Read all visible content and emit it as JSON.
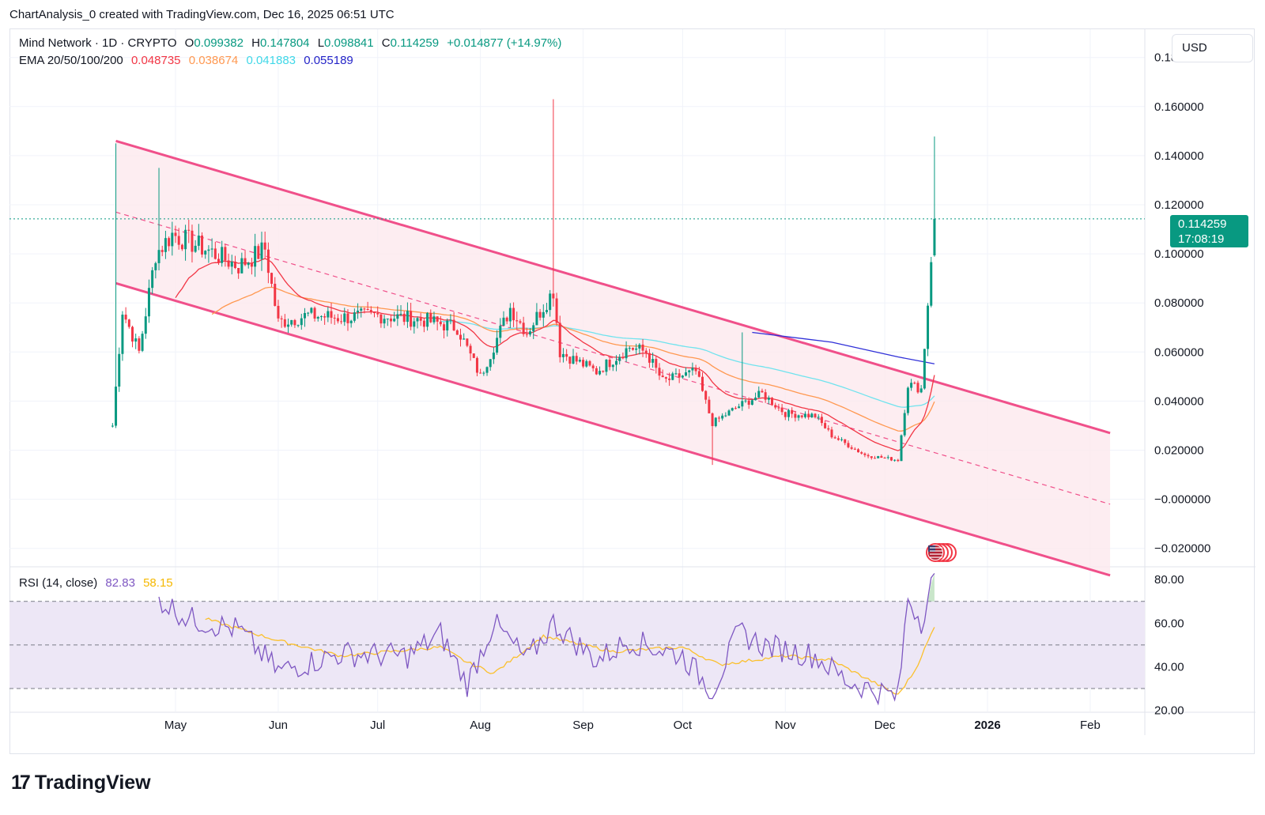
{
  "header": {
    "credit": "ChartAnalysis_0 created with TradingView.com, Dec 16, 2025 06:51 UTC"
  },
  "legend": {
    "symbol": "Mind Network · 1D · CRYPTO",
    "open_label": "O",
    "open": "0.099382",
    "high_label": "H",
    "high": "0.147804",
    "low_label": "L",
    "low": "0.098841",
    "close_label": "C",
    "close": "0.114259",
    "change": "+0.014877 (+14.97%)",
    "ema_label": "EMA 20/50/100/200",
    "ema20": "0.048735",
    "ema50": "0.038674",
    "ema100": "0.041883",
    "ema200": "0.055189",
    "rsi_label": "RSI (14, close)",
    "rsi_value": "82.83",
    "rsi_ma": "58.15"
  },
  "toolbar": {
    "currency": "USD"
  },
  "price_tag": {
    "price": "0.114259",
    "countdown": "17:08:19"
  },
  "footer": {
    "brand": "TradingView"
  },
  "colors": {
    "up": "#089981",
    "down": "#f23645",
    "channel": "#f0508a",
    "channel_fill": "#fde8ee",
    "ema20": "#f23645",
    "ema50": "#ff9850",
    "ema100": "#6fe3ee",
    "ema200": "#3030d8",
    "rsi": "#7e57c2",
    "rsi_ma": "#fbc02d",
    "rsi_band": "#ede7f6"
  },
  "icons": {
    "flag": "us-flag-icon"
  },
  "chart_data": [
    {
      "type": "candlestick",
      "title": "Mind Network · 1D · CRYPTO",
      "x_ticks": [
        "May",
        "Jun",
        "Jul",
        "Aug",
        "Sep",
        "Oct",
        "Nov",
        "Dec",
        "2026",
        "Feb"
      ],
      "y_ticks": [
        "0.180000",
        "0.160000",
        "0.140000",
        "0.120000",
        "0.100000",
        "0.080000",
        "0.060000",
        "0.040000",
        "0.020000",
        "−0.000000",
        "−0.020000"
      ],
      "ylim": [
        -0.0275,
        0.1915
      ],
      "last_price": 0.114259,
      "close_path": [
        {
          "date": "2025-04-12",
          "close": 0.03
        },
        {
          "date": "2025-04-15",
          "close": 0.077
        },
        {
          "date": "2025-04-20",
          "close": 0.06
        },
        {
          "date": "2025-04-25",
          "close": 0.1
        },
        {
          "date": "2025-04-30",
          "close": 0.108
        },
        {
          "date": "2025-05-10",
          "close": 0.102
        },
        {
          "date": "2025-05-20",
          "close": 0.095
        },
        {
          "date": "2025-05-28",
          "close": 0.102
        },
        {
          "date": "2025-06-01",
          "close": 0.072
        },
        {
          "date": "2025-06-10",
          "close": 0.075
        },
        {
          "date": "2025-06-20",
          "close": 0.074
        },
        {
          "date": "2025-07-01",
          "close": 0.075
        },
        {
          "date": "2025-07-15",
          "close": 0.073
        },
        {
          "date": "2025-07-25",
          "close": 0.07
        },
        {
          "date": "2025-08-01",
          "close": 0.05
        },
        {
          "date": "2025-08-10",
          "close": 0.078
        },
        {
          "date": "2025-08-15",
          "close": 0.068
        },
        {
          "date": "2025-08-23",
          "close": 0.085
        },
        {
          "date": "2025-08-25",
          "close": 0.06
        },
        {
          "date": "2025-09-05",
          "close": 0.052
        },
        {
          "date": "2025-09-15",
          "close": 0.062
        },
        {
          "date": "2025-09-20",
          "close": 0.06
        },
        {
          "date": "2025-09-25",
          "close": 0.048
        },
        {
          "date": "2025-10-05",
          "close": 0.052
        },
        {
          "date": "2025-10-10",
          "close": 0.031
        },
        {
          "date": "2025-10-18",
          "close": 0.038
        },
        {
          "date": "2025-10-25",
          "close": 0.043
        },
        {
          "date": "2025-11-01",
          "close": 0.035
        },
        {
          "date": "2025-11-10",
          "close": 0.034
        },
        {
          "date": "2025-11-15",
          "close": 0.026
        },
        {
          "date": "2025-11-25",
          "close": 0.018
        },
        {
          "date": "2025-12-05",
          "close": 0.016
        },
        {
          "date": "2025-12-08",
          "close": 0.047
        },
        {
          "date": "2025-12-12",
          "close": 0.045
        },
        {
          "date": "2025-12-14",
          "close": 0.08
        },
        {
          "date": "2025-12-15",
          "close": 0.099
        },
        {
          "date": "2025-12-16",
          "close": 0.114
        }
      ],
      "wicks": [
        {
          "date": "2025-04-13",
          "high": 0.145
        },
        {
          "date": "2025-04-26",
          "high": 0.135
        },
        {
          "date": "2025-08-23",
          "high": 0.163
        },
        {
          "date": "2025-10-10",
          "low": 0.014
        },
        {
          "date": "2025-10-19",
          "high": 0.068
        },
        {
          "date": "2025-12-16",
          "high": 0.147804
        }
      ],
      "channel": {
        "upper": [
          {
            "date": "2025-04-13",
            "value": 0.146
          },
          {
            "date": "2026-02-07",
            "value": 0.027
          }
        ],
        "lower": [
          {
            "date": "2025-04-13",
            "value": 0.088
          },
          {
            "date": "2026-02-07",
            "value": -0.031
          }
        ],
        "middle": [
          {
            "date": "2025-04-13",
            "value": 0.117
          },
          {
            "date": "2026-02-07",
            "value": -0.002
          }
        ]
      }
    },
    {
      "type": "line",
      "title": "RSI (14, close)",
      "y_ticks": [
        "80.00",
        "60.00",
        "40.00",
        "20.00"
      ],
      "ylim": [
        19.5,
        85.5
      ],
      "bands": [
        30,
        50,
        70
      ],
      "series": [
        {
          "name": "RSI",
          "points": [
            {
              "date": "2025-04-26",
              "value": 71
            },
            {
              "date": "2025-05-05",
              "value": 62
            },
            {
              "date": "2025-05-20",
              "value": 57
            },
            {
              "date": "2025-06-01",
              "value": 38
            },
            {
              "date": "2025-06-20",
              "value": 46
            },
            {
              "date": "2025-07-10",
              "value": 45
            },
            {
              "date": "2025-07-20",
              "value": 55
            },
            {
              "date": "2025-07-28",
              "value": 32
            },
            {
              "date": "2025-08-05",
              "value": 60
            },
            {
              "date": "2025-08-15",
              "value": 43
            },
            {
              "date": "2025-08-23",
              "value": 60
            },
            {
              "date": "2025-09-05",
              "value": 43
            },
            {
              "date": "2025-09-15",
              "value": 52
            },
            {
              "date": "2025-10-01",
              "value": 45
            },
            {
              "date": "2025-10-10",
              "value": 29
            },
            {
              "date": "2025-10-18",
              "value": 56
            },
            {
              "date": "2025-10-25",
              "value": 50
            },
            {
              "date": "2025-11-10",
              "value": 45
            },
            {
              "date": "2025-11-20",
              "value": 33
            },
            {
              "date": "2025-12-05",
              "value": 26
            },
            {
              "date": "2025-12-08",
              "value": 72
            },
            {
              "date": "2025-12-12",
              "value": 61
            },
            {
              "date": "2025-12-16",
              "value": 82.83
            }
          ]
        },
        {
          "name": "RSI MA",
          "points": [
            {
              "date": "2025-05-10",
              "value": 62
            },
            {
              "date": "2025-06-01",
              "value": 52
            },
            {
              "date": "2025-06-20",
              "value": 45
            },
            {
              "date": "2025-07-20",
              "value": 49
            },
            {
              "date": "2025-07-28",
              "value": 42
            },
            {
              "date": "2025-08-05",
              "value": 37
            },
            {
              "date": "2025-08-20",
              "value": 54
            },
            {
              "date": "2025-09-10",
              "value": 47
            },
            {
              "date": "2025-10-01",
              "value": 49
            },
            {
              "date": "2025-10-12",
              "value": 41
            },
            {
              "date": "2025-11-01",
              "value": 45
            },
            {
              "date": "2025-11-15",
              "value": 43
            },
            {
              "date": "2025-12-05",
              "value": 27
            },
            {
              "date": "2025-12-10",
              "value": 38
            },
            {
              "date": "2025-12-16",
              "value": 58.15
            }
          ]
        }
      ]
    }
  ]
}
